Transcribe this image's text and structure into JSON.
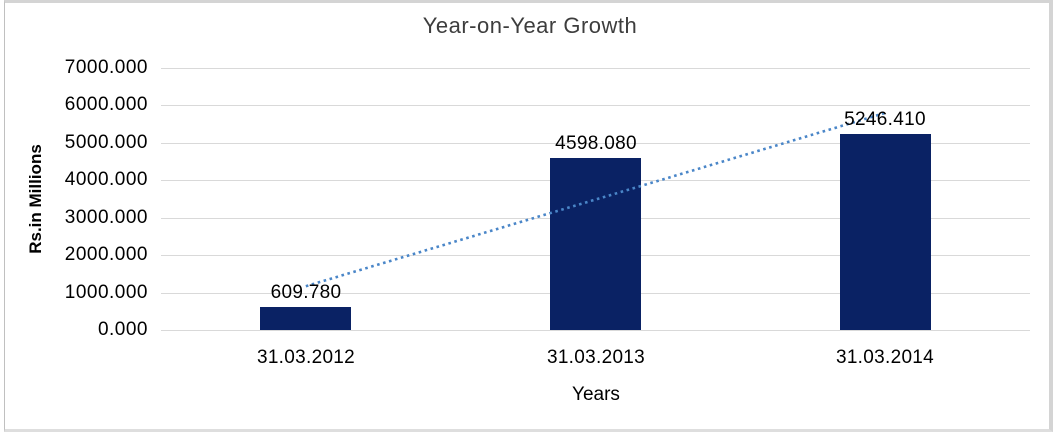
{
  "chart": {
    "title": "Year-on-Year Growth",
    "y_axis_title": "Rs.in Millions",
    "x_axis_title": "Years"
  },
  "chart_data": {
    "type": "bar",
    "title": "Year-on-Year Growth",
    "xlabel": "Years",
    "ylabel": "Rs.in Millions",
    "categories": [
      "31.03.2012",
      "31.03.2013",
      "31.03.2014"
    ],
    "values": [
      609.78,
      4598.08,
      5246.41
    ],
    "value_labels": [
      "609.780",
      "4598.080",
      "5246.410"
    ],
    "ylim": [
      0,
      7000
    ],
    "y_tick_labels": [
      "0.000",
      "1000.000",
      "2000.000",
      "3000.000",
      "4000.000",
      "5000.000",
      "6000.000",
      "7000.000"
    ],
    "grid": "horizontal gridlines on",
    "legend": "none",
    "bar_color": "#0A2264",
    "gridline_color": "#D9D9D9",
    "trendline": {
      "style": "dotted",
      "color": "#4A86C8",
      "start_value": 1170,
      "end_value": 5800,
      "from_category_index": 0,
      "to_category_index": 2
    }
  }
}
